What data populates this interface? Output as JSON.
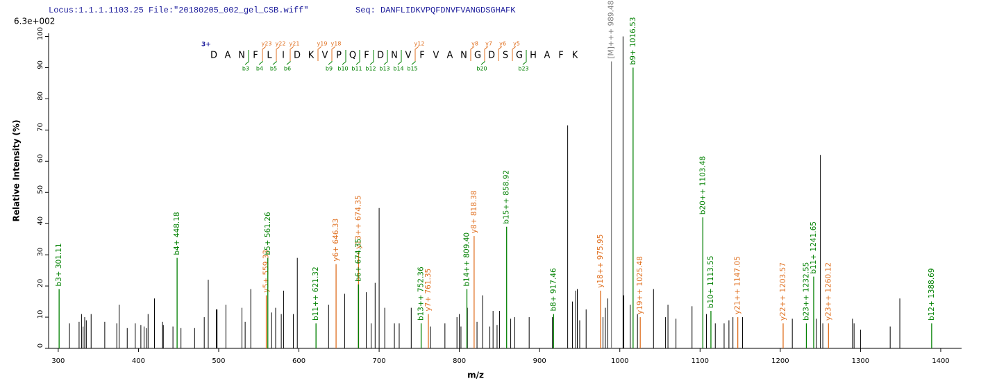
{
  "chart_data": {
    "type": "spectrum",
    "header": "Locus:1.1.1.1103.25 File:\"20180205_002_gel_CSB.wiff\"",
    "seq_label": "Seq: DANFLIDKVPQFDNVFVANGDSGHAFK",
    "scale_label": "6.3e+002",
    "ylabel": "Relative Intensity (%)",
    "xlabel": "m/z",
    "xlim": [
      288,
      1426
    ],
    "ylim": [
      0,
      101
    ],
    "xticks": [
      300,
      400,
      500,
      600,
      700,
      800,
      900,
      1000,
      1100,
      1200,
      1300,
      1400
    ],
    "yticks": [
      0,
      10,
      20,
      30,
      40,
      50,
      60,
      70,
      80,
      90,
      100
    ],
    "sequence": {
      "charge": "3+",
      "residues": [
        "D",
        "A",
        "N",
        "F",
        "L",
        "I",
        "D",
        "K",
        "V",
        "P",
        "Q",
        "F",
        "D",
        "N",
        "V",
        "F",
        "V",
        "A",
        "N",
        "G",
        "D",
        "S",
        "G",
        "H",
        "A",
        "F",
        "K"
      ],
      "b_ions": [
        "b3",
        "b4",
        "b5",
        "b6",
        "b9",
        "b10",
        "b11",
        "b12",
        "b13",
        "b14",
        "b15",
        "b20",
        "b23"
      ],
      "y_ions": [
        "y23",
        "y22",
        "y21",
        "y19",
        "y18",
        "y12",
        "y8",
        "y7",
        "y6",
        "y5"
      ],
      "b_color": "#008000",
      "y_color": "#e07020"
    },
    "series": [
      {
        "color": "#000000",
        "x": [
          314,
          326,
          329,
          331,
          333,
          335,
          341,
          358,
          373,
          376,
          386,
          396,
          403,
          407,
          410,
          412,
          420,
          430,
          431,
          443,
          453,
          470,
          482,
          487,
          497,
          498,
          509,
          529,
          533,
          540,
          566,
          571,
          578,
          581,
          593,
          598,
          637,
          657,
          674,
          684,
          690,
          695,
          700,
          707,
          719,
          725,
          740,
          764,
          782,
          797,
          800,
          802,
          810,
          822,
          829,
          838,
          842,
          847,
          850,
          864,
          869,
          887,
          916,
          935,
          941,
          945,
          947,
          950,
          958,
          979,
          982,
          985,
          1004,
          1005,
          1013,
          1022,
          1042,
          1057,
          1060,
          1070,
          1090,
          1108,
          1119,
          1130,
          1136,
          1141,
          1153,
          1215,
          1245,
          1250,
          1253,
          1290,
          1292,
          1300,
          1337,
          1349
        ],
        "values": [
          8,
          8.5,
          11,
          7,
          10,
          9,
          11,
          8.5,
          8,
          14,
          6.5,
          8,
          7.5,
          7,
          6.5,
          11,
          16,
          8.5,
          7.5,
          7,
          6.5,
          6.5,
          10,
          22,
          12.5,
          12.5,
          14,
          13,
          8.5,
          19,
          11.5,
          13,
          11,
          18.5,
          11,
          29,
          14,
          17.5,
          20.5,
          18,
          8,
          21,
          45,
          13,
          8,
          8,
          13,
          7,
          8,
          10,
          11,
          7,
          13,
          8.5,
          17,
          7,
          12,
          7.5,
          12,
          9.5,
          10,
          10,
          10,
          71.5,
          15,
          18.5,
          19,
          9,
          12.5,
          10,
          13,
          16,
          100,
          17,
          14,
          11,
          19,
          10,
          14,
          9.5,
          13.5,
          11,
          8,
          8,
          9,
          10,
          10,
          9.5,
          9.5,
          62,
          8,
          9.5,
          8,
          6,
          7,
          16
        ]
      }
    ],
    "annotations": [
      {
        "label": "b3+ 301.11",
        "mz": 301.11,
        "intensity": 19,
        "color": "#008000"
      },
      {
        "label": "b4+ 448.18",
        "mz": 448.18,
        "intensity": 29,
        "color": "#008000"
      },
      {
        "label": "y5+ 559.33",
        "mz": 559.33,
        "intensity": 17,
        "color": "#e07020"
      },
      {
        "label": "b5+ 561.26",
        "mz": 561.26,
        "intensity": 29,
        "color": "#008000"
      },
      {
        "label": "b11++ 621.32",
        "mz": 621.32,
        "intensity": 8,
        "color": "#008000"
      },
      {
        "label": "y6+ 646.33",
        "mz": 646.33,
        "intensity": 27,
        "color": "#e07020"
      },
      {
        "label": "y13++ 674.35",
        "mz": 674.35,
        "intensity": 31,
        "color": "#e07020"
      },
      {
        "label": "b6+ 674.35",
        "mz": 674.35,
        "intensity": 20.5,
        "color": "#008000"
      },
      {
        "label": "b13++ 752.36",
        "mz": 752.36,
        "intensity": 8,
        "color": "#008000"
      },
      {
        "label": "y7+ 761.35",
        "mz": 761.35,
        "intensity": 11,
        "color": "#e07020"
      },
      {
        "label": "b14++ 809.40",
        "mz": 809.4,
        "intensity": 19,
        "color": "#008000"
      },
      {
        "label": "y8+ 818.38",
        "mz": 818.38,
        "intensity": 36,
        "color": "#e07020"
      },
      {
        "label": "b15++ 858.92",
        "mz": 858.92,
        "intensity": 39,
        "color": "#008000"
      },
      {
        "label": "b8+ 917.46",
        "mz": 917.46,
        "intensity": 11,
        "color": "#008000"
      },
      {
        "label": "y18++ 975.95",
        "mz": 975.95,
        "intensity": 18.5,
        "color": "#e07020"
      },
      {
        "label": "[M]+++ 989.48",
        "mz": 989.48,
        "intensity": 92,
        "color": "#808080"
      },
      {
        "label": "b9+ 1016.53",
        "mz": 1016.53,
        "intensity": 90,
        "color": "#008000"
      },
      {
        "label": "y19++ 1025.48",
        "mz": 1025.48,
        "intensity": 10,
        "color": "#e07020"
      },
      {
        "label": "b20++ 1103.48",
        "mz": 1103.48,
        "intensity": 42,
        "color": "#008000"
      },
      {
        "label": "b10+ 1113.55",
        "mz": 1113.55,
        "intensity": 12,
        "color": "#008000"
      },
      {
        "label": "y21++ 1147.05",
        "mz": 1147.05,
        "intensity": 10,
        "color": "#e07020"
      },
      {
        "label": "y22++ 1203.57",
        "mz": 1203.57,
        "intensity": 8,
        "color": "#e07020"
      },
      {
        "label": "b23++ 1232.55",
        "mz": 1232.55,
        "intensity": 8,
        "color": "#008000"
      },
      {
        "label": "b11+ 1241.65",
        "mz": 1241.65,
        "intensity": 23,
        "color": "#008000"
      },
      {
        "label": "y23++ 1260.12",
        "mz": 1260.12,
        "intensity": 8,
        "color": "#e07020"
      },
      {
        "label": "b12+ 1388.69",
        "mz": 1388.69,
        "intensity": 8,
        "color": "#008000"
      }
    ]
  }
}
